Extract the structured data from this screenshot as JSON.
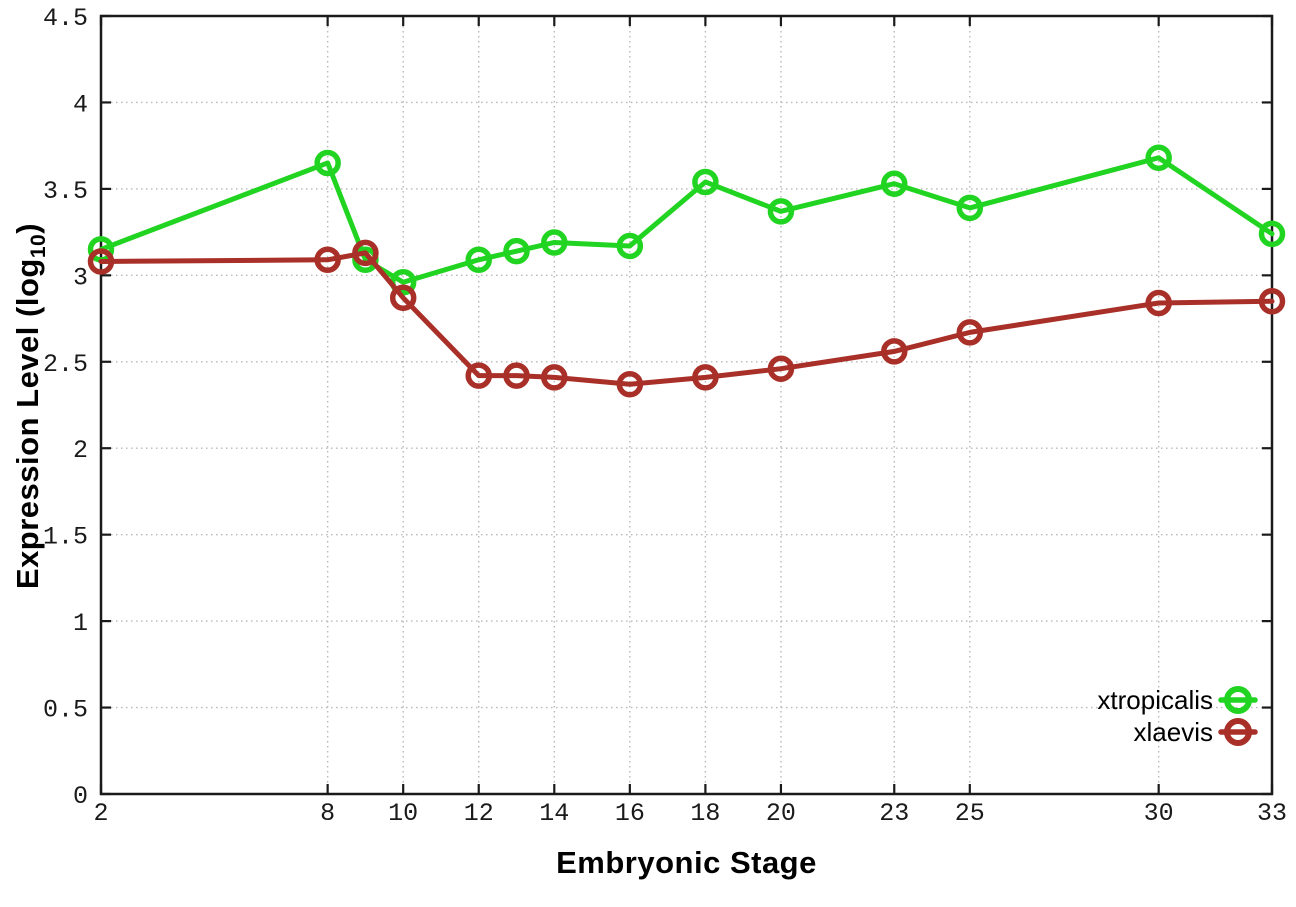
{
  "chart_data": {
    "type": "line",
    "title": "",
    "xlabel": "Embryonic Stage",
    "ylabel": "Expression Level (log10)",
    "ylabel_parts": {
      "main": "Expression Level (log",
      "sub": "10",
      "close": ")"
    },
    "x": [
      2,
      8,
      9,
      10,
      12,
      13,
      14,
      16,
      18,
      20,
      23,
      25,
      30,
      33
    ],
    "xticks": [
      2,
      8,
      10,
      12,
      14,
      16,
      18,
      20,
      23,
      25,
      30,
      33
    ],
    "xtick_labels": [
      "2",
      "8",
      "10",
      "12",
      "14",
      "16",
      "18",
      "20",
      "23",
      "25",
      "30",
      "33"
    ],
    "yticks": [
      0,
      0.5,
      1,
      1.5,
      2,
      2.5,
      3,
      3.5,
      4,
      4.5
    ],
    "ytick_labels": [
      "0",
      "0.5",
      "1",
      "1.5",
      "2",
      "2.5",
      "3",
      "3.5",
      "4",
      "4.5"
    ],
    "xlim": [
      2,
      33
    ],
    "ylim": [
      0,
      4.5
    ],
    "grid": true,
    "legend_position": "inside-bottom-right",
    "series": [
      {
        "name": "xtropicalis",
        "color": "#22d422",
        "values": [
          3.15,
          3.65,
          3.09,
          2.96,
          3.09,
          3.14,
          3.19,
          3.17,
          3.54,
          3.37,
          3.53,
          3.39,
          3.68,
          3.24
        ]
      },
      {
        "name": "xlaevis",
        "color": "#a93028",
        "values": [
          3.08,
          3.09,
          3.13,
          2.87,
          2.42,
          2.42,
          2.41,
          2.37,
          2.41,
          2.46,
          2.56,
          2.67,
          2.84,
          2.85
        ]
      }
    ],
    "colors": {
      "axis": "#1a1a1a",
      "grid": "#b8b8b8",
      "tick_label": "#1a1a1a"
    }
  }
}
